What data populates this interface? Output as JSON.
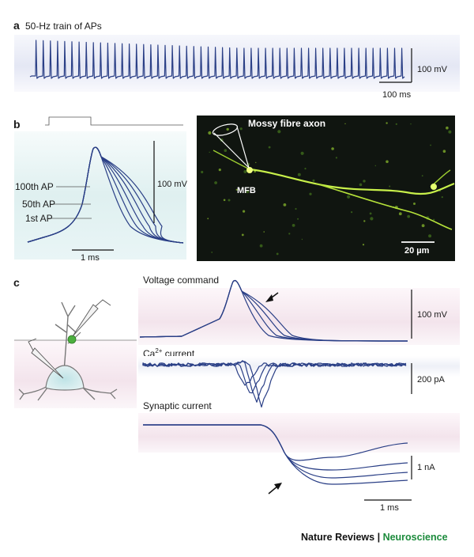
{
  "panel_a": {
    "letter": "a",
    "title": "50-Hz train of APs",
    "scale_voltage": "100 mV",
    "scale_time": "100 ms"
  },
  "panel_b": {
    "letter": "b",
    "trace_labels": [
      "100th AP",
      "50th AP",
      "1st AP"
    ],
    "scale_voltage": "100 mV",
    "scale_time": "1 ms",
    "micrograph": {
      "title": "Mossy fibre axon",
      "bouton_label": "MFB",
      "scale_label": "20 µm"
    }
  },
  "panel_c": {
    "letter": "c",
    "voltage_command": {
      "label": "Voltage command",
      "scale": "100 mV"
    },
    "ca_current": {
      "label_main": "Ca",
      "label_sup": "2+",
      "label_rest": " current",
      "scale": "200 pA"
    },
    "synaptic_current": {
      "label": "Synaptic current",
      "scale": "1 nA"
    },
    "time_scale": "1 ms"
  },
  "credit": {
    "journal": "Nature Reviews",
    "separator": " | ",
    "section": "Neuroscience"
  },
  "colors": {
    "trace": "#2a3f86",
    "micrograph_bg": "#101510",
    "axon": "#c8f04a",
    "credit_green": "#1c8b3c"
  }
}
